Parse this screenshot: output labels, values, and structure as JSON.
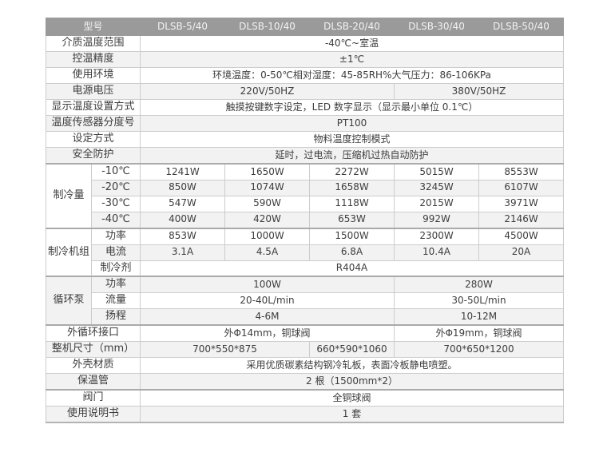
{
  "colors": {
    "header_bg": "#9a9a9a",
    "header_text": "#f2f2f2",
    "row_alt_bg": "#f2f2f2",
    "row_bg": "#ffffff",
    "border_thin": "#cccccc",
    "border_thick": "#aaaaaa",
    "border_outer": "#b3b3b3",
    "text": "#3d3d3d"
  },
  "table": {
    "header": {
      "label": "型号",
      "models": [
        "DLSB-5/40",
        "DLSB-10/40",
        "DLSB-20/40",
        "DLSB-30/40",
        "DLSB-50/40"
      ]
    },
    "rows": [
      {
        "label": "介质温度范围",
        "cells": [
          {
            "text": "-40℃~室温",
            "span": 5
          }
        ]
      },
      {
        "label": "控温精度",
        "cells": [
          {
            "text": "±1℃",
            "span": 5
          }
        ]
      },
      {
        "label": "使用环境",
        "cells": [
          {
            "text": "环境温度：0-50℃相对湿度：45-85RH%大气压力：86-106KPa",
            "span": 5
          }
        ]
      },
      {
        "label": "电源电压",
        "cells": [
          {
            "text": "220V/50HZ",
            "span": 3
          },
          {
            "text": "380V/50HZ",
            "span": 2
          }
        ]
      },
      {
        "label": "显示温度设置方式",
        "cells": [
          {
            "text": "触摸按键数字设定，LED 数字显示（显示最小单位 0.1℃）",
            "span": 5
          }
        ]
      },
      {
        "label": "温度传感器分度号",
        "cells": [
          {
            "text": "PT100",
            "span": 5
          }
        ]
      },
      {
        "label": "设定方式",
        "cells": [
          {
            "text": "物料温度控制模式",
            "span": 5
          }
        ]
      },
      {
        "label": "安全防护",
        "cells": [
          {
            "text": "延时，过电流，压缩机过热自动防护",
            "span": 5
          }
        ]
      },
      {
        "group": {
          "label": "制冷量",
          "rowspan": 4
        },
        "sub": true,
        "section_start": true,
        "label": "-10℃",
        "cells": [
          {
            "text": "1241W",
            "span": 1
          },
          {
            "text": "1650W",
            "span": 1
          },
          {
            "text": "2272W",
            "span": 1
          },
          {
            "text": "5015W",
            "span": 1
          },
          {
            "text": "8553W",
            "span": 1
          }
        ]
      },
      {
        "sub": true,
        "label": "-20℃",
        "cells": [
          {
            "text": "850W",
            "span": 1
          },
          {
            "text": "1074W",
            "span": 1
          },
          {
            "text": "1658W",
            "span": 1
          },
          {
            "text": "3245W",
            "span": 1
          },
          {
            "text": "6107W",
            "span": 1
          }
        ]
      },
      {
        "sub": true,
        "label": "-30℃",
        "cells": [
          {
            "text": "547W",
            "span": 1
          },
          {
            "text": "590W",
            "span": 1
          },
          {
            "text": "1118W",
            "span": 1
          },
          {
            "text": "2015W",
            "span": 1
          },
          {
            "text": "3971W",
            "span": 1
          }
        ]
      },
      {
        "sub": true,
        "label": "-40℃",
        "cells": [
          {
            "text": "400W",
            "span": 1
          },
          {
            "text": "420W",
            "span": 1
          },
          {
            "text": "653W",
            "span": 1
          },
          {
            "text": "992W",
            "span": 1
          },
          {
            "text": "2146W",
            "span": 1
          }
        ]
      },
      {
        "group": {
          "label": "制冷机组",
          "rowspan": 3
        },
        "sub": true,
        "section_start": true,
        "label": "功率",
        "cells": [
          {
            "text": "853W",
            "span": 1
          },
          {
            "text": "1000W",
            "span": 1
          },
          {
            "text": "1500W",
            "span": 1
          },
          {
            "text": "2300W",
            "span": 1
          },
          {
            "text": "4500W",
            "span": 1
          }
        ]
      },
      {
        "sub": true,
        "label": "电流",
        "cells": [
          {
            "text": "3.1A",
            "span": 1
          },
          {
            "text": "4.5A",
            "span": 1
          },
          {
            "text": "6.8A",
            "span": 1
          },
          {
            "text": "10.4A",
            "span": 1
          },
          {
            "text": "20A",
            "span": 1
          }
        ]
      },
      {
        "sub": true,
        "label": "制冷剂",
        "cells": [
          {
            "text": "R404A",
            "span": 5
          }
        ]
      },
      {
        "group": {
          "label": "循环泵",
          "rowspan": 3
        },
        "sub": true,
        "section_start": true,
        "label": "功率",
        "cells": [
          {
            "text": "100W",
            "span": 3
          },
          {
            "text": "280W",
            "span": 2
          }
        ]
      },
      {
        "sub": true,
        "label": "流量",
        "cells": [
          {
            "text": "20-40L/min",
            "span": 3
          },
          {
            "text": "30-50L/min",
            "span": 2
          }
        ]
      },
      {
        "sub": true,
        "label": "扬程",
        "cells": [
          {
            "text": "4-6M",
            "span": 3
          },
          {
            "text": "10-12M",
            "span": 2
          }
        ]
      },
      {
        "label": "外循环接口",
        "section_start": true,
        "cells": [
          {
            "text": "外Φ14mm，铜球阀",
            "span": 3
          },
          {
            "text": "外Φ19mm，铜球阀",
            "span": 2
          }
        ]
      },
      {
        "label": "整机尺寸（mm）",
        "cells": [
          {
            "text": "700*550*875",
            "span": 2
          },
          {
            "text": "660*590*1060",
            "span": 1
          },
          {
            "text": "700*650*1200",
            "span": 2
          }
        ]
      },
      {
        "label": "外壳材质",
        "cells": [
          {
            "text": "采用优质碳素结构钢冷轧板，表面冷板静电喷塑。",
            "span": 5
          }
        ]
      },
      {
        "label": "保温管",
        "cells": [
          {
            "text": "2 根（1500mm*2）",
            "span": 5
          }
        ]
      },
      {
        "label": "阀门",
        "section_start": true,
        "cells": [
          {
            "text": "全铜球阀",
            "span": 5
          }
        ]
      },
      {
        "label": "使用说明书",
        "cells": [
          {
            "text": "1 套",
            "span": 5
          }
        ]
      }
    ]
  }
}
